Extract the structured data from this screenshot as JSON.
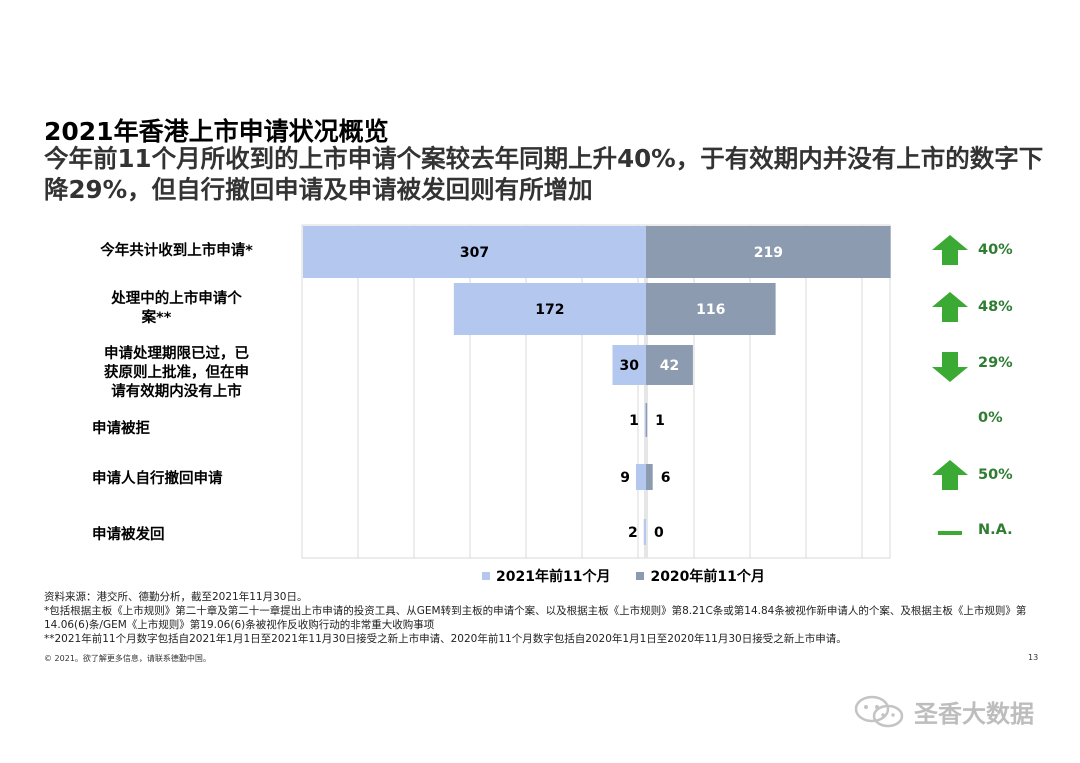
{
  "header": {
    "title": "2021年香港上市申请状况概览",
    "subtitle": "今年前11个月所收到的上市申请个案较去年同期上升40%，于有效期内并没有上市的数字下降29%，但自行撤回申请及申请被发回则有所增加"
  },
  "chart_data": {
    "type": "bar",
    "orientation": "horizontal-butterfly",
    "categories": [
      "今年共计收到上市申请*",
      "处理中的上市申请个案**",
      "申请处理期限已过，已获原则上批准，但在申请有效期内没有上市",
      "申请被拒",
      "申请人自行撤回申请",
      "申请被发回"
    ],
    "series": [
      {
        "name": "2021年前11个月",
        "values": [
          307,
          172,
          30,
          1,
          9,
          2
        ],
        "color": "#b4c7ef"
      },
      {
        "name": "2020年前11个月",
        "values": [
          219,
          116,
          42,
          1,
          6,
          0
        ],
        "color": "#8c9bb0"
      }
    ],
    "changes": [
      {
        "label": "40%",
        "trend": "up"
      },
      {
        "label": "48%",
        "trend": "up"
      },
      {
        "label": "29%",
        "trend": "down"
      },
      {
        "label": "0%",
        "trend": "none"
      },
      {
        "label": "50%",
        "trend": "up"
      },
      {
        "label": "N.A.",
        "trend": "flat"
      }
    ],
    "xlim": [
      0,
      307
    ],
    "grid": true,
    "legend_position": "bottom"
  },
  "labels": {
    "cat0": "今年共计收到上市申请*",
    "cat1_line1": "处理中的上市申请个",
    "cat1_line2": "案**",
    "cat2_line1": "申请处理期限已过，已",
    "cat2_line2": "获原则上批准，但在申",
    "cat2_line3": "请有效期内没有上市",
    "cat3": "申请被拒",
    "cat4": "申请人自行撤回申请",
    "cat5": "申请被发回"
  },
  "legend": {
    "s2021": "2021年前11个月",
    "s2020": "2020年前11个月"
  },
  "footnotes": {
    "source": "资料来源：港交所、德勤分析，截至2021年11月30日。",
    "note1": "*包括根据主板《上市规则》第二十章及第二十一章提出上市申请的投资工具、从GEM转到主板的申请个案、以及根据主板《上市规则》第8.21C条或第14.84条被视作新申请人的个案、及根据主板《上市规则》第14.06(6)条/GEM《上市规则》第19.06(6)条被视作反收购行动的非常重大收购事项",
    "note2": "**2021年前11个月数字包括自2021年1月1日至2021年11月30日接受之新上市申请、2020年前11个月数字包括自2020年1月1日至2020年11月30日接受之新上市申请。"
  },
  "copyright": "© 2021。欲了解更多信息，请联系德勤中国。",
  "page_number": "13",
  "watermark": "圣香大数据",
  "colors": {
    "bar_2021": "#b4c7ef",
    "bar_2020": "#8c9bb0",
    "arrow_green": "#3aaa35",
    "change_text": "#2f7d32"
  }
}
